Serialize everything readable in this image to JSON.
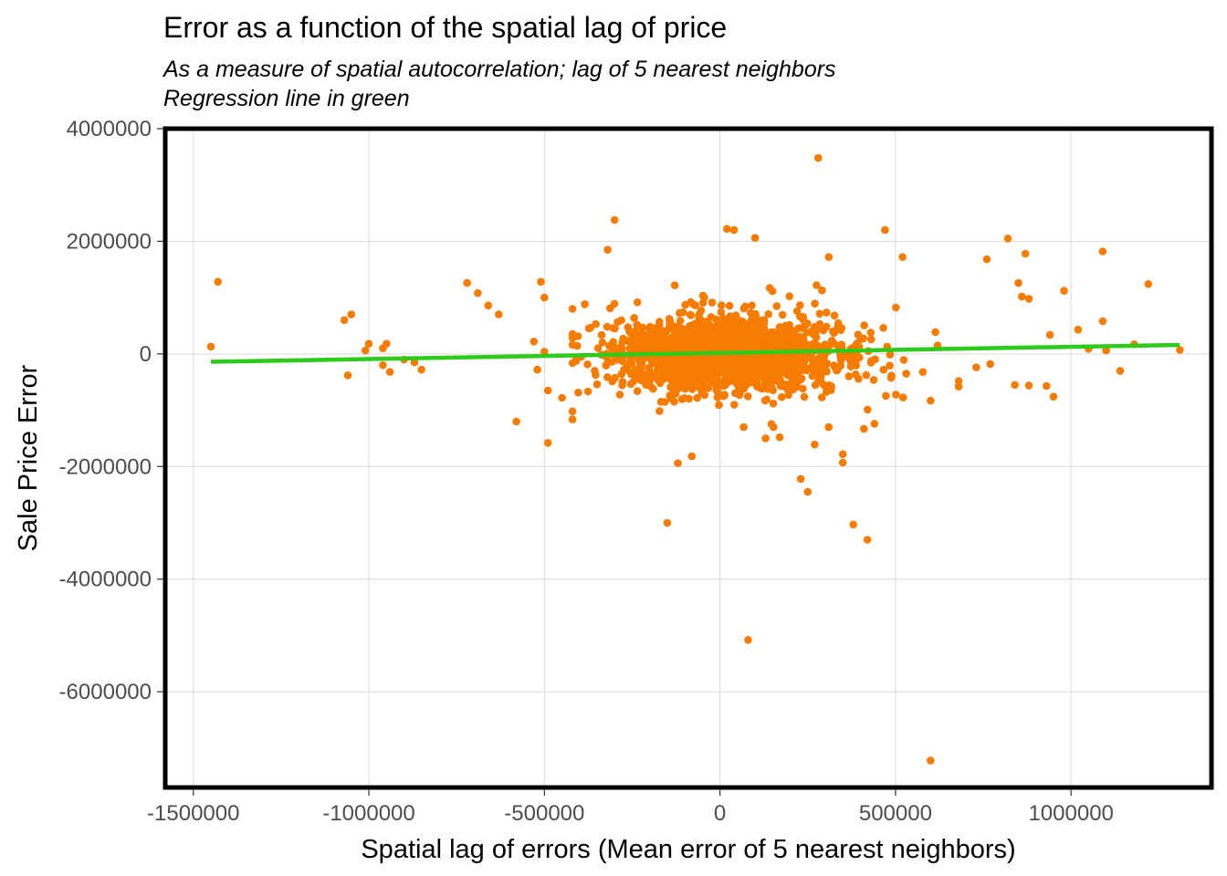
{
  "chart_data": {
    "type": "scatter",
    "title": "Error as a function of the spatial lag of price",
    "subtitle_lines": [
      "As a measure of spatial autocorrelation; lag of 5 nearest neighbors",
      "Regression line in green"
    ],
    "xlabel": "Spatial lag of errors (Mean error of 5 nearest neighbors)",
    "ylabel": "Sale Price Error",
    "xlim": [
      -1580000,
      1400000
    ],
    "ylim": [
      -7700000,
      4000000
    ],
    "x_ticks": [
      -1500000,
      -1000000,
      -500000,
      0,
      500000,
      1000000
    ],
    "x_tick_labels": [
      "-1500000",
      "-1000000",
      "-500000",
      "0",
      "500000",
      "1000000"
    ],
    "y_ticks": [
      4000000,
      2000000,
      0,
      -2000000,
      -4000000,
      -6000000
    ],
    "y_tick_labels": [
      "4000000",
      "2000000",
      "0",
      "-2000000",
      "-4000000",
      "-6000000"
    ],
    "grid": true,
    "point_color": "#f57c00",
    "line_color": "#2ecc1a",
    "regression_line": {
      "x": [
        -1450000,
        1310000
      ],
      "y": [
        -140000,
        160000
      ]
    },
    "outliers": [
      {
        "x": -1450000,
        "y": 130000
      },
      {
        "x": -1430000,
        "y": 1280000
      },
      {
        "x": -1070000,
        "y": 600000
      },
      {
        "x": -1050000,
        "y": 700000
      },
      {
        "x": -1060000,
        "y": -380000
      },
      {
        "x": -1010000,
        "y": 60000
      },
      {
        "x": -1000000,
        "y": 180000
      },
      {
        "x": -960000,
        "y": 100000
      },
      {
        "x": -950000,
        "y": 180000
      },
      {
        "x": -960000,
        "y": -200000
      },
      {
        "x": -940000,
        "y": -320000
      },
      {
        "x": -900000,
        "y": -100000
      },
      {
        "x": -870000,
        "y": -150000
      },
      {
        "x": -850000,
        "y": -280000
      },
      {
        "x": -720000,
        "y": 1260000
      },
      {
        "x": -690000,
        "y": 1080000
      },
      {
        "x": -660000,
        "y": 860000
      },
      {
        "x": -630000,
        "y": 700000
      },
      {
        "x": -510000,
        "y": 1280000
      },
      {
        "x": -500000,
        "y": 1000000
      },
      {
        "x": -530000,
        "y": 220000
      },
      {
        "x": -500000,
        "y": 40000
      },
      {
        "x": -520000,
        "y": -280000
      },
      {
        "x": -580000,
        "y": -1200000
      },
      {
        "x": -490000,
        "y": -1580000
      },
      {
        "x": -490000,
        "y": -650000
      },
      {
        "x": -450000,
        "y": -780000
      },
      {
        "x": -300000,
        "y": 2380000
      },
      {
        "x": -320000,
        "y": 1850000
      },
      {
        "x": -150000,
        "y": -3000000
      },
      {
        "x": 20000,
        "y": 2220000
      },
      {
        "x": 40000,
        "y": 2200000
      },
      {
        "x": 100000,
        "y": 2060000
      },
      {
        "x": 280000,
        "y": 3480000
      },
      {
        "x": 310000,
        "y": 1720000
      },
      {
        "x": 470000,
        "y": 2200000
      },
      {
        "x": 520000,
        "y": 1720000
      },
      {
        "x": 80000,
        "y": -5080000
      },
      {
        "x": 600000,
        "y": -7220000
      },
      {
        "x": 380000,
        "y": -3030000
      },
      {
        "x": 420000,
        "y": -3300000
      },
      {
        "x": 230000,
        "y": -2220000
      },
      {
        "x": 250000,
        "y": -2450000
      },
      {
        "x": 270000,
        "y": -1610000
      },
      {
        "x": 350000,
        "y": -1930000
      },
      {
        "x": 350000,
        "y": -1780000
      },
      {
        "x": -120000,
        "y": -1940000
      },
      {
        "x": -80000,
        "y": -1820000
      },
      {
        "x": 130000,
        "y": -1500000
      },
      {
        "x": 170000,
        "y": -1480000
      },
      {
        "x": 410000,
        "y": -1330000
      },
      {
        "x": 440000,
        "y": -1240000
      },
      {
        "x": 760000,
        "y": 1680000
      },
      {
        "x": 820000,
        "y": 2050000
      },
      {
        "x": 870000,
        "y": 1780000
      },
      {
        "x": 850000,
        "y": 1260000
      },
      {
        "x": 860000,
        "y": 1020000
      },
      {
        "x": 880000,
        "y": 980000
      },
      {
        "x": 980000,
        "y": 1120000
      },
      {
        "x": 1090000,
        "y": 1820000
      },
      {
        "x": 1220000,
        "y": 1240000
      },
      {
        "x": 1310000,
        "y": 70000
      },
      {
        "x": 1090000,
        "y": 580000
      },
      {
        "x": 1020000,
        "y": 430000
      },
      {
        "x": 940000,
        "y": 340000
      },
      {
        "x": 840000,
        "y": -550000
      },
      {
        "x": 880000,
        "y": -560000
      },
      {
        "x": 930000,
        "y": -570000
      },
      {
        "x": 950000,
        "y": -760000
      },
      {
        "x": 1140000,
        "y": -300000
      },
      {
        "x": 770000,
        "y": -180000
      },
      {
        "x": 680000,
        "y": -580000
      },
      {
        "x": 680000,
        "y": -480000
      },
      {
        "x": 730000,
        "y": -240000
      },
      {
        "x": 600000,
        "y": -830000
      },
      {
        "x": 1100000,
        "y": 60000
      },
      {
        "x": 1050000,
        "y": 90000
      },
      {
        "x": 1180000,
        "y": 170000
      }
    ],
    "cluster": {
      "n": 1900,
      "x_mean": 20000,
      "x_sd": 150000,
      "y_mean": 0,
      "y_sd": 280000,
      "seed": 7
    }
  }
}
